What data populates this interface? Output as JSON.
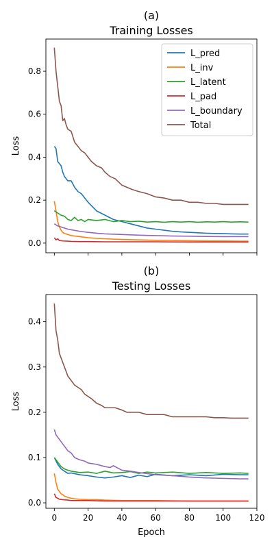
{
  "chart_data": [
    {
      "type": "line",
      "panel_label": "(a)",
      "title": "Training Losses",
      "xlabel": "",
      "ylabel": "Loss",
      "xlim": [
        -5,
        120
      ],
      "ylim": [
        -0.045,
        0.95
      ],
      "xticks": [
        0,
        20,
        40,
        60,
        80,
        100,
        120
      ],
      "yticks": [
        0.0,
        0.2,
        0.4,
        0.6,
        0.8
      ],
      "show_xticklabels": false,
      "legend": "top-right",
      "grid": false,
      "series": [
        {
          "name": "L_pred",
          "color": "#1f77b4",
          "x": [
            0,
            1,
            2,
            3,
            4,
            5,
            6,
            8,
            10,
            12,
            14,
            16,
            18,
            20,
            25,
            30,
            35,
            40,
            45,
            50,
            55,
            60,
            65,
            70,
            75,
            80,
            85,
            90,
            95,
            100,
            105,
            110,
            115
          ],
          "y": [
            0.45,
            0.44,
            0.38,
            0.37,
            0.36,
            0.33,
            0.31,
            0.29,
            0.29,
            0.26,
            0.24,
            0.23,
            0.21,
            0.19,
            0.15,
            0.13,
            0.11,
            0.1,
            0.09,
            0.08,
            0.07,
            0.065,
            0.06,
            0.055,
            0.052,
            0.05,
            0.048,
            0.046,
            0.045,
            0.044,
            0.043,
            0.042,
            0.042
          ]
        },
        {
          "name": "L_inv",
          "color": "#ff7f0e",
          "x": [
            0,
            1,
            2,
            3,
            4,
            5,
            6,
            8,
            10,
            12,
            15,
            20,
            25,
            30,
            40,
            50,
            60,
            70,
            80,
            90,
            100,
            110,
            115
          ],
          "y": [
            0.195,
            0.15,
            0.1,
            0.075,
            0.06,
            0.05,
            0.045,
            0.04,
            0.035,
            0.033,
            0.03,
            0.025,
            0.022,
            0.02,
            0.017,
            0.015,
            0.013,
            0.012,
            0.011,
            0.01,
            0.01,
            0.009,
            0.009
          ]
        },
        {
          "name": "L_latent",
          "color": "#2ca02c",
          "x": [
            0,
            2,
            4,
            6,
            8,
            10,
            12,
            14,
            16,
            18,
            20,
            25,
            30,
            35,
            40,
            45,
            50,
            55,
            60,
            65,
            70,
            75,
            80,
            85,
            90,
            95,
            100,
            105,
            110,
            115
          ],
          "y": [
            0.15,
            0.14,
            0.13,
            0.125,
            0.11,
            0.105,
            0.12,
            0.105,
            0.11,
            0.1,
            0.11,
            0.105,
            0.11,
            0.1,
            0.105,
            0.1,
            0.102,
            0.098,
            0.1,
            0.097,
            0.1,
            0.098,
            0.1,
            0.097,
            0.099,
            0.098,
            0.1,
            0.098,
            0.099,
            0.098
          ]
        },
        {
          "name": "L_pad",
          "color": "#d62728",
          "x": [
            0,
            1,
            2,
            3,
            5,
            8,
            10,
            15,
            20,
            30,
            40,
            60,
            80,
            100,
            115
          ],
          "y": [
            0.025,
            0.015,
            0.02,
            0.012,
            0.01,
            0.009,
            0.008,
            0.007,
            0.007,
            0.006,
            0.006,
            0.006,
            0.005,
            0.005,
            0.005
          ]
        },
        {
          "name": "L_boundary",
          "color": "#9467bd",
          "x": [
            0,
            2,
            4,
            6,
            8,
            10,
            15,
            20,
            25,
            30,
            40,
            50,
            60,
            70,
            80,
            90,
            100,
            110,
            115
          ],
          "y": [
            0.09,
            0.08,
            0.075,
            0.07,
            0.065,
            0.062,
            0.055,
            0.05,
            0.046,
            0.043,
            0.04,
            0.037,
            0.035,
            0.033,
            0.032,
            0.031,
            0.03,
            0.03,
            0.03
          ]
        },
        {
          "name": "Total",
          "color": "#8c564b",
          "x": [
            0,
            1,
            2,
            3,
            4,
            5,
            6,
            7,
            8,
            10,
            12,
            14,
            16,
            18,
            20,
            22,
            25,
            28,
            30,
            33,
            36,
            40,
            43,
            46,
            50,
            55,
            60,
            65,
            70,
            75,
            80,
            85,
            90,
            95,
            100,
            105,
            110,
            115
          ],
          "y": [
            0.91,
            0.8,
            0.73,
            0.66,
            0.64,
            0.57,
            0.58,
            0.55,
            0.53,
            0.52,
            0.47,
            0.45,
            0.43,
            0.42,
            0.4,
            0.38,
            0.36,
            0.35,
            0.33,
            0.31,
            0.3,
            0.27,
            0.26,
            0.25,
            0.24,
            0.23,
            0.215,
            0.21,
            0.2,
            0.2,
            0.19,
            0.19,
            0.185,
            0.185,
            0.18,
            0.18,
            0.18,
            0.18
          ]
        }
      ]
    },
    {
      "type": "line",
      "panel_label": "(b)",
      "title": "Testing Losses",
      "xlabel": "Epoch",
      "ylabel": "Loss",
      "xlim": [
        -5,
        120
      ],
      "ylim": [
        -0.012,
        0.46
      ],
      "xticks": [
        0,
        20,
        40,
        60,
        80,
        100,
        120
      ],
      "yticks": [
        0.0,
        0.1,
        0.2,
        0.3,
        0.4
      ],
      "show_xticklabels": true,
      "grid": false,
      "series": [
        {
          "name": "L_pred",
          "color": "#1f77b4",
          "x": [
            0,
            2,
            4,
            6,
            8,
            10,
            15,
            20,
            25,
            30,
            35,
            40,
            45,
            50,
            55,
            60,
            70,
            80,
            90,
            100,
            110,
            115
          ],
          "y": [
            0.1,
            0.085,
            0.075,
            0.07,
            0.065,
            0.066,
            0.062,
            0.06,
            0.057,
            0.055,
            0.057,
            0.06,
            0.056,
            0.061,
            0.058,
            0.063,
            0.06,
            0.062,
            0.06,
            0.063,
            0.062,
            0.062
          ]
        },
        {
          "name": "L_inv",
          "color": "#ff7f0e",
          "x": [
            0,
            1,
            2,
            3,
            4,
            5,
            6,
            8,
            10,
            12,
            15,
            20,
            25,
            30,
            40,
            50,
            60,
            80,
            100,
            115
          ],
          "y": [
            0.065,
            0.045,
            0.03,
            0.025,
            0.02,
            0.018,
            0.015,
            0.012,
            0.01,
            0.009,
            0.008,
            0.007,
            0.007,
            0.006,
            0.005,
            0.005,
            0.005,
            0.004,
            0.004,
            0.004
          ]
        },
        {
          "name": "L_latent",
          "color": "#2ca02c",
          "x": [
            0,
            2,
            4,
            6,
            8,
            10,
            15,
            20,
            25,
            30,
            35,
            40,
            45,
            50,
            55,
            60,
            70,
            80,
            90,
            100,
            110,
            115
          ],
          "y": [
            0.1,
            0.09,
            0.08,
            0.075,
            0.072,
            0.07,
            0.067,
            0.068,
            0.065,
            0.07,
            0.066,
            0.067,
            0.069,
            0.065,
            0.068,
            0.066,
            0.068,
            0.065,
            0.067,
            0.065,
            0.066,
            0.065
          ]
        },
        {
          "name": "L_pad",
          "color": "#d62728",
          "x": [
            0,
            1,
            2,
            3,
            5,
            8,
            10,
            15,
            20,
            30,
            40,
            60,
            80,
            100,
            115
          ],
          "y": [
            0.02,
            0.012,
            0.01,
            0.008,
            0.007,
            0.006,
            0.005,
            0.005,
            0.005,
            0.004,
            0.004,
            0.004,
            0.004,
            0.004,
            0.004
          ]
        },
        {
          "name": "L_boundary",
          "color": "#9467bd",
          "x": [
            0,
            1,
            2,
            3,
            4,
            6,
            8,
            10,
            12,
            15,
            18,
            20,
            25,
            30,
            33,
            35,
            40,
            45,
            50,
            60,
            70,
            80,
            90,
            100,
            110,
            115
          ],
          "y": [
            0.162,
            0.15,
            0.145,
            0.14,
            0.135,
            0.125,
            0.115,
            0.11,
            0.1,
            0.095,
            0.092,
            0.088,
            0.085,
            0.08,
            0.078,
            0.082,
            0.072,
            0.07,
            0.067,
            0.062,
            0.06,
            0.057,
            0.055,
            0.054,
            0.053,
            0.053
          ]
        },
        {
          "name": "Total",
          "color": "#8c564b",
          "x": [
            0,
            1,
            2,
            3,
            4,
            5,
            6,
            8,
            10,
            12,
            14,
            16,
            18,
            20,
            22,
            25,
            28,
            30,
            33,
            36,
            40,
            43,
            46,
            50,
            55,
            60,
            65,
            70,
            75,
            80,
            85,
            90,
            95,
            100,
            105,
            110,
            115
          ],
          "y": [
            0.44,
            0.38,
            0.36,
            0.33,
            0.32,
            0.31,
            0.3,
            0.28,
            0.27,
            0.26,
            0.255,
            0.25,
            0.24,
            0.235,
            0.23,
            0.22,
            0.215,
            0.21,
            0.21,
            0.21,
            0.205,
            0.2,
            0.2,
            0.2,
            0.195,
            0.195,
            0.195,
            0.19,
            0.19,
            0.19,
            0.19,
            0.19,
            0.188,
            0.188,
            0.187,
            0.187,
            0.187
          ]
        }
      ]
    }
  ]
}
